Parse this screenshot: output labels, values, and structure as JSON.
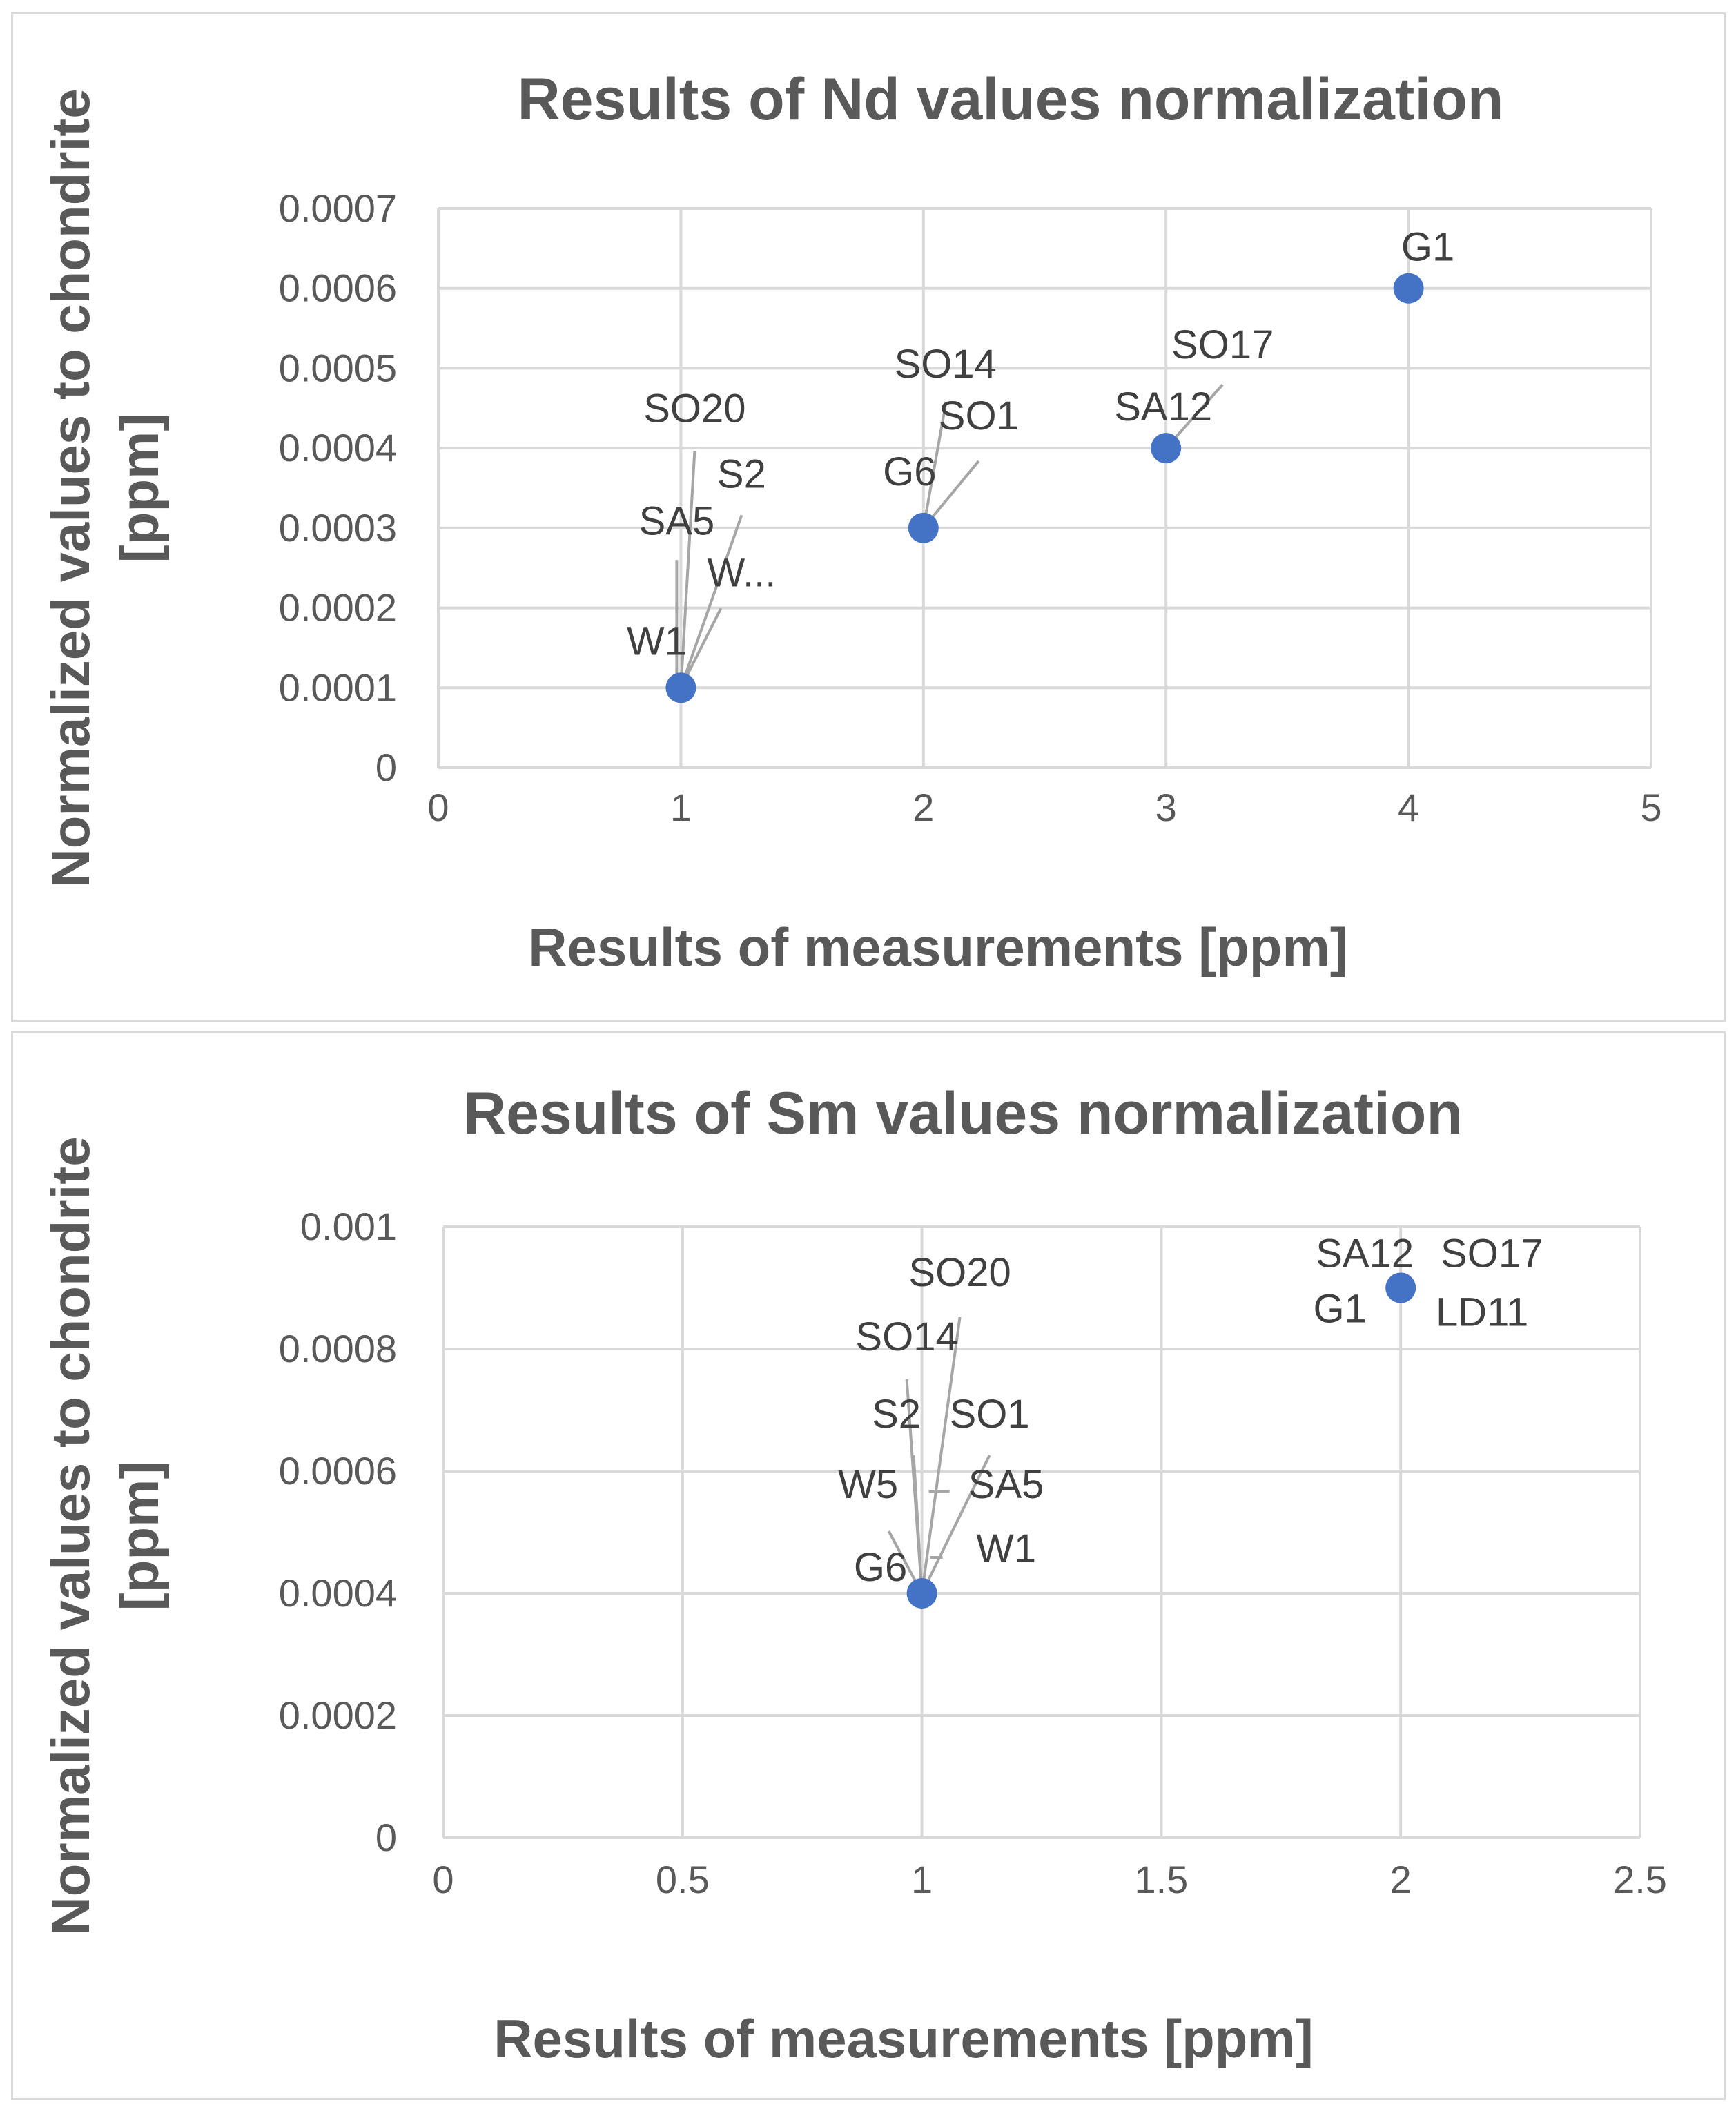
{
  "chart_data": [
    {
      "type": "scatter",
      "title": "Results of Nd values normalization",
      "xlabel": "Results of measurements [ppm]",
      "ylabel": "Normalized values to chondrite [ppm]",
      "xlim": [
        0,
        5
      ],
      "ylim": [
        0,
        0.0007
      ],
      "xticks": [
        "0",
        "1",
        "2",
        "3",
        "4",
        "5"
      ],
      "yticks": [
        "0",
        "0.0001",
        "0.0002",
        "0.0003",
        "0.0004",
        "0.0005",
        "0.0006",
        "0.0007"
      ],
      "grid": true,
      "points": [
        {
          "x": 1,
          "y": 0.0001
        },
        {
          "x": 2,
          "y": 0.0003
        },
        {
          "x": 3,
          "y": 0.0004
        },
        {
          "x": 4,
          "y": 0.0006
        }
      ],
      "annotations": [
        {
          "text": "SO20",
          "x": 1,
          "y": 0.0001
        },
        {
          "text": "S2",
          "x": 1,
          "y": 0.0001
        },
        {
          "text": "SA5",
          "x": 1,
          "y": 0.0001
        },
        {
          "text": "W...",
          "x": 1,
          "y": 0.0001
        },
        {
          "text": "W1",
          "x": 1,
          "y": 0.0001
        },
        {
          "text": "SO14",
          "x": 2,
          "y": 0.0003
        },
        {
          "text": "SO1",
          "x": 2,
          "y": 0.0003
        },
        {
          "text": "G6",
          "x": 2,
          "y": 0.0003
        },
        {
          "text": "SO17",
          "x": 3,
          "y": 0.0004
        },
        {
          "text": "SA12",
          "x": 3,
          "y": 0.0004
        },
        {
          "text": "G1",
          "x": 4,
          "y": 0.0006
        }
      ]
    },
    {
      "type": "scatter",
      "title": "Results of Sm values normalization",
      "xlabel": "Results of measurements [ppm]",
      "ylabel": "Normalized values to chondrite [ppm]",
      "xlim": [
        0,
        2.5
      ],
      "ylim": [
        0,
        0.001
      ],
      "xticks": [
        "0",
        "0.5",
        "1",
        "1.5",
        "2",
        "2.5"
      ],
      "yticks": [
        "0",
        "0.0002",
        "0.0004",
        "0.0006",
        "0.0008",
        "0.001"
      ],
      "grid": true,
      "points": [
        {
          "x": 1,
          "y": 0.0004
        },
        {
          "x": 2,
          "y": 0.0009
        }
      ],
      "annotations": [
        {
          "text": "SO20",
          "x": 1,
          "y": 0.0004
        },
        {
          "text": "SO14",
          "x": 1,
          "y": 0.0004
        },
        {
          "text": "S2",
          "x": 1,
          "y": 0.0004
        },
        {
          "text": "SO1",
          "x": 1,
          "y": 0.0004
        },
        {
          "text": "W5",
          "x": 1,
          "y": 0.0004
        },
        {
          "text": "SA5",
          "x": 1,
          "y": 0.0004
        },
        {
          "text": "G6",
          "x": 1,
          "y": 0.0004
        },
        {
          "text": "W1",
          "x": 1,
          "y": 0.0004
        },
        {
          "text": "SA12",
          "x": 2,
          "y": 0.0009
        },
        {
          "text": "SO17",
          "x": 2,
          "y": 0.0009
        },
        {
          "text": "G1",
          "x": 2,
          "y": 0.0009
        },
        {
          "text": "LD11",
          "x": 2,
          "y": 0.0009
        }
      ]
    }
  ]
}
